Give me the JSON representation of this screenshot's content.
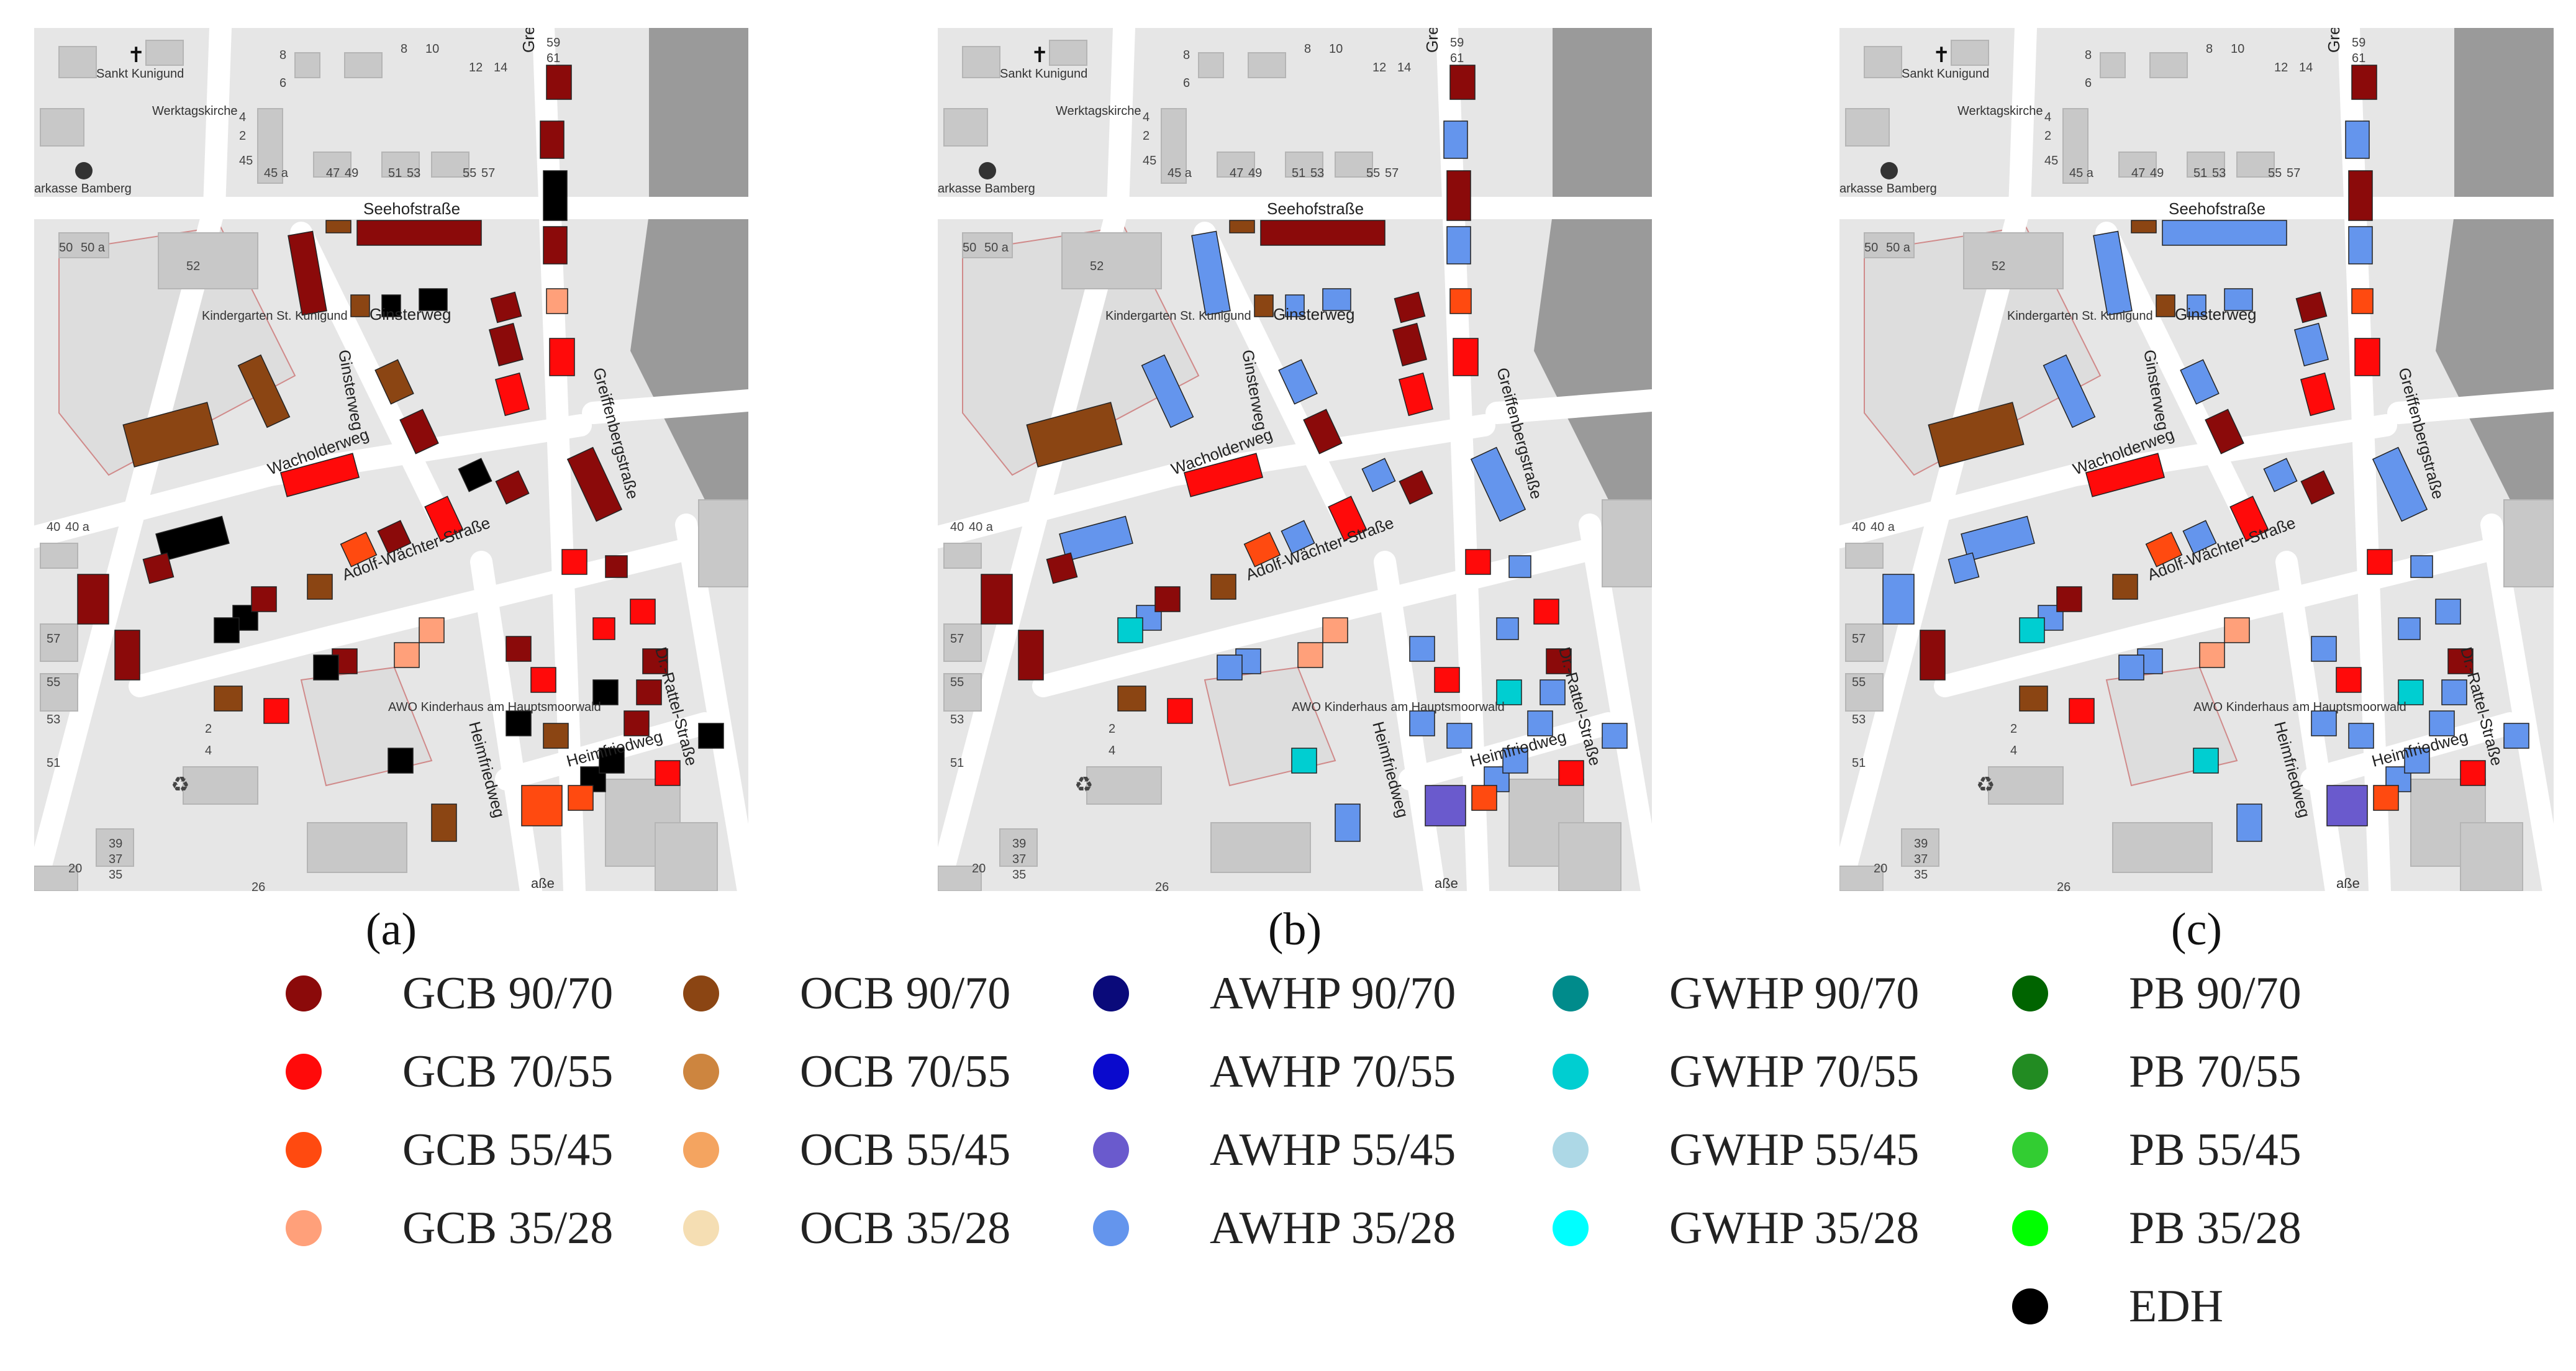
{
  "panels": [
    {
      "label": "(a)",
      "name": "a"
    },
    {
      "label": "(b)",
      "name": "b"
    },
    {
      "label": "(c)",
      "name": "c"
    }
  ],
  "map_labels": {
    "streets": [
      "Seehofstraße",
      "Ginsterweg",
      "Ginsterweg",
      "Wacholderweg",
      "Adolf-Wächter-Straße",
      "Heimfriedweg",
      "Heimfriedweg",
      "Greiffenbergstraße",
      "Dr.-Rattel-Straße",
      "Greiffe"
    ],
    "places": [
      "Sankt Kunigund",
      "Werktagskirche",
      "arkasse Bamberg",
      "Kindergarten St. Kunigund",
      "AWO Kinderhaus am Hauptsmoorwald"
    ],
    "house_numbers": [
      "8",
      "6",
      "8",
      "10",
      "12",
      "14",
      "4",
      "2",
      "45",
      "45 a",
      "47",
      "49",
      "51",
      "53",
      "55",
      "57",
      "50",
      "50 a",
      "52",
      "40",
      "40 a",
      "57",
      "55",
      "53",
      "51",
      "39",
      "37",
      "35",
      "20",
      "26",
      "59",
      "61",
      "2",
      "4"
    ],
    "road_fragment": "aße"
  },
  "legend": [
    {
      "label": "GCB 90/70",
      "color": "#8b0a0a"
    },
    {
      "label": "GCB 70/55",
      "color": "#ff0a0a"
    },
    {
      "label": "GCB 55/45",
      "color": "#ff4a10"
    },
    {
      "label": "GCB 35/28",
      "color": "#ffa07a"
    },
    {
      "label": "OCB 90/70",
      "color": "#8b4513"
    },
    {
      "label": "OCB 70/55",
      "color": "#cd853f"
    },
    {
      "label": "OCB 55/45",
      "color": "#f4a460"
    },
    {
      "label": "OCB 35/28",
      "color": "#f5deb3"
    },
    {
      "label": "AWHP 90/70",
      "color": "#0a0a7a"
    },
    {
      "label": "AWHP 70/55",
      "color": "#0a0acd"
    },
    {
      "label": "AWHP 55/45",
      "color": "#6a5acd"
    },
    {
      "label": "AWHP 35/28",
      "color": "#6495ed"
    },
    {
      "label": "GWHP 90/70",
      "color": "#008b8b"
    },
    {
      "label": "GWHP 70/55",
      "color": "#00ced1"
    },
    {
      "label": "GWHP 55/45",
      "color": "#add8e6"
    },
    {
      "label": "GWHP 35/28",
      "color": "#00ffff"
    },
    {
      "label": "PB 90/70",
      "color": "#006400"
    },
    {
      "label": "PB 70/55",
      "color": "#228b22"
    },
    {
      "label": "PB 55/45",
      "color": "#32cd32"
    },
    {
      "label": "PB 35/28",
      "color": "#00ff00"
    },
    {
      "label": "EDH",
      "color": "#000000"
    }
  ],
  "building_assignments": {
    "a": [
      "#8b0a0a",
      "#8b0a0a",
      "#000000",
      "#8b4513",
      "#8b0a0a",
      "#8b0a0a",
      "#ffa07a",
      "#ff0a0a",
      "#8b0a0a",
      "#000000",
      "#000000",
      "#8b4513",
      "#8b0a0a",
      "#8b0a0a",
      "#ff0a0a",
      "#8b4513",
      "#8b4513",
      "#ff0a0a",
      "#8b4513",
      "#8b0a0a",
      "#8b0a0a",
      "#000000",
      "#8b0a0a",
      "#ff0a0a",
      "#ff4a10",
      "#8b0a0a",
      "#000000",
      "#8b0a0a",
      "#000000",
      "#000000",
      "#8b0a0a",
      "#8b4513",
      "#ffa07a",
      "#8b0a0a",
      "#8b4513",
      "#000000",
      "#ff0a0a",
      "#8b0a0a",
      "#ff0a0a",
      "#ff0a0a",
      "#000000",
      "#ffa07a",
      "#8b0a0a",
      "#8b0a0a",
      "#000000",
      "#8b4513",
      "#ff4a10",
      "#8b0a0a",
      "#000000",
      "#000000",
      "#ff0a0a",
      "#8b0a0a",
      "#ff0a0a",
      "#8b0a0a",
      "#8b4513",
      "#000000",
      "#ff0a0a",
      "#ff4a10",
      "#8b0a0a",
      "#000000"
    ],
    "b": [
      "#8b0a0a",
      "#6495ed",
      "#8b0a0a",
      "#8b4513",
      "#8b0a0a",
      "#6495ed",
      "#ff4a10",
      "#ff0a0a",
      "#6495ed",
      "#6495ed",
      "#6495ed",
      "#8b4513",
      "#8b0a0a",
      "#8b0a0a",
      "#ff0a0a",
      "#6495ed",
      "#8b4513",
      "#ff0a0a",
      "#6495ed",
      "#8b0a0a",
      "#6495ed",
      "#6495ed",
      "#8b0a0a",
      "#ff0a0a",
      "#ff4a10",
      "#6495ed",
      "#6495ed",
      "#8b0a0a",
      "#6495ed",
      "#00ced1",
      "#8b0a0a",
      "#8b4513",
      "#ffa07a",
      "#6495ed",
      "#8b4513",
      "#6495ed",
      "#ff0a0a",
      "#6495ed",
      "#ff0a0a",
      "#6495ed",
      "#00ced1",
      "#ffa07a",
      "#8b0a0a",
      "#8b0a0a",
      "#6495ed",
      "#6495ed",
      "#6a5acd",
      "#6495ed",
      "#6495ed",
      "#6495ed",
      "#ff0a0a",
      "#6495ed",
      "#ff0a0a",
      "#8b0a0a",
      "#6495ed",
      "#00ced1",
      "#ff0a0a",
      "#ff4a10",
      "#6495ed",
      "#6495ed"
    ],
    "c": [
      "#8b0a0a",
      "#6495ed",
      "#8b0a0a",
      "#8b4513",
      "#6495ed",
      "#6495ed",
      "#ff4a10",
      "#ff0a0a",
      "#6495ed",
      "#6495ed",
      "#6495ed",
      "#8b4513",
      "#8b0a0a",
      "#6495ed",
      "#ff0a0a",
      "#6495ed",
      "#8b4513",
      "#ff0a0a",
      "#6495ed",
      "#8b0a0a",
      "#6495ed",
      "#6495ed",
      "#8b0a0a",
      "#ff0a0a",
      "#ff4a10",
      "#6495ed",
      "#6495ed",
      "#6495ed",
      "#6495ed",
      "#00ced1",
      "#8b0a0a",
      "#8b4513",
      "#ffa07a",
      "#6495ed",
      "#8b4513",
      "#6495ed",
      "#ff0a0a",
      "#6495ed",
      "#6495ed",
      "#6495ed",
      "#00ced1",
      "#ffa07a",
      "#8b0a0a",
      "#6495ed",
      "#6495ed",
      "#6495ed",
      "#6a5acd",
      "#6495ed",
      "#6495ed",
      "#6495ed",
      "#ff0a0a",
      "#6495ed",
      "#ff0a0a",
      "#8b0a0a",
      "#6495ed",
      "#00ced1",
      "#ff0a0a",
      "#ff4a10",
      "#6495ed",
      "#6495ed"
    ]
  }
}
